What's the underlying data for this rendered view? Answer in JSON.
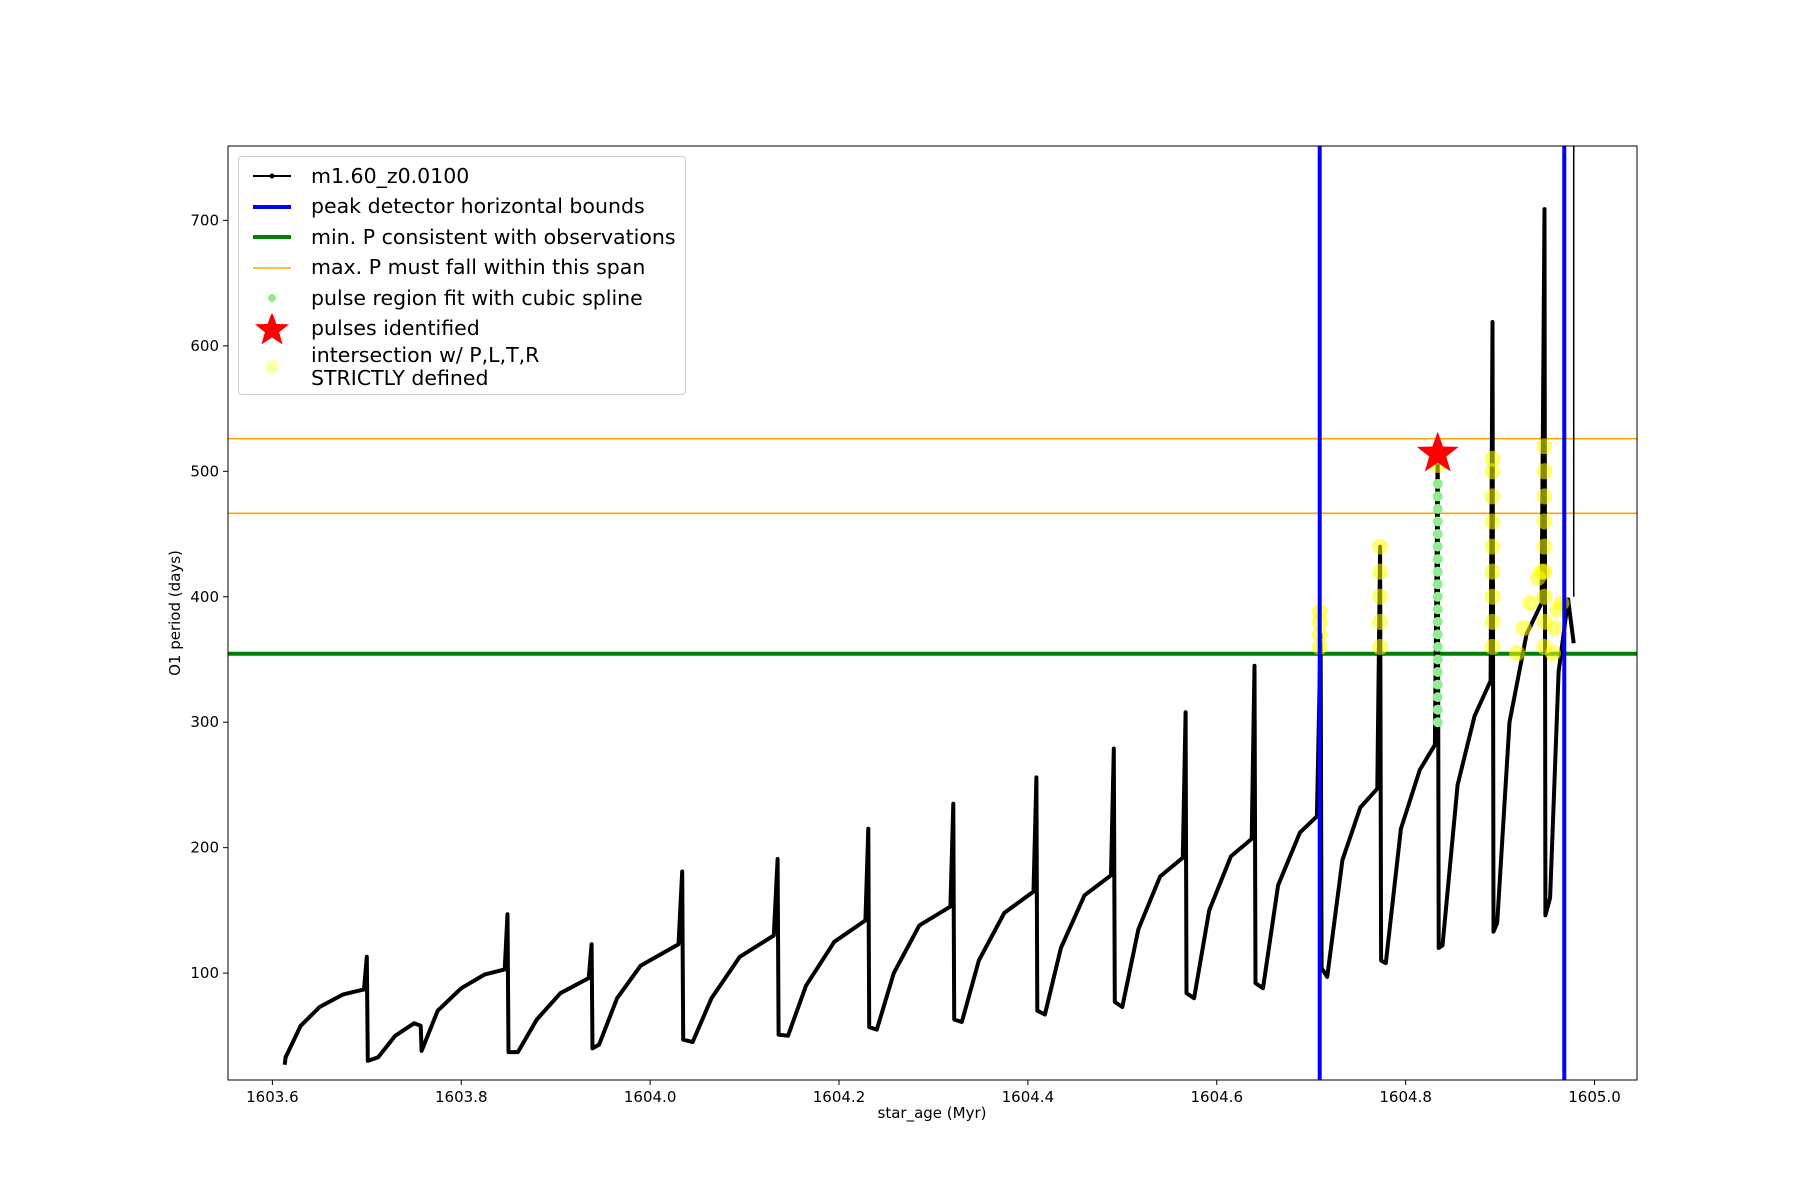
{
  "chart_data": {
    "type": "line",
    "xlabel": "star_age (Myr)",
    "ylabel": "O1 period (days)",
    "xlim": [
      1603.553,
      1605.045
    ],
    "ylim": [
      14.8,
      759.3
    ],
    "xticks": [
      1603.6,
      1603.8,
      {
        "value": 1604.0,
        "label": "1604.0"
      },
      1604.2,
      1604.4,
      1604.6,
      1604.8,
      {
        "value": 1605.0,
        "label": "1605.0"
      }
    ],
    "yticks": [
      100,
      200,
      300,
      400,
      500,
      600,
      700
    ],
    "legend": "upper left",
    "series": [
      {
        "name": "m1.60_z0.0100",
        "color": "#000000",
        "kind": "line",
        "x": [
          1603.613,
          1603.614,
          1603.63,
          1603.65,
          1603.675,
          1603.697,
          1603.7,
          1603.701,
          1603.712,
          1603.73,
          1603.75,
          1603.757,
          1603.758,
          1603.775,
          1603.8,
          1603.825,
          1603.846,
          1603.849,
          1603.85,
          1603.86,
          1603.88,
          1603.905,
          1603.935,
          1603.938,
          1603.939,
          1603.946,
          1603.965,
          1603.99,
          1604.03,
          1604.034,
          1604.035,
          1604.045,
          1604.065,
          1604.095,
          1604.131,
          1604.135,
          1604.136,
          1604.146,
          1604.165,
          1604.195,
          1604.228,
          1604.231,
          1604.232,
          1604.24,
          1604.258,
          1604.285,
          1604.318,
          1604.321,
          1604.322,
          1604.33,
          1604.348,
          1604.375,
          1604.406,
          1604.409,
          1604.41,
          1604.418,
          1604.435,
          1604.46,
          1604.488,
          1604.491,
          1604.492,
          1604.5,
          1604.517,
          1604.54,
          1604.564,
          1604.567,
          1604.568,
          1604.576,
          1604.592,
          1604.615,
          1604.637,
          1604.64,
          1604.641,
          1604.649,
          1604.665,
          1604.688,
          1604.706,
          1604.71,
          1604.711,
          1604.717,
          1604.733,
          1604.752,
          1604.77,
          1604.773,
          1604.774,
          1604.779,
          1604.795,
          1604.815,
          1604.831,
          1604.834,
          1604.835,
          1604.839,
          1604.855,
          1604.873,
          1604.89,
          1604.892,
          1604.893,
          1604.897,
          1604.91,
          1604.928,
          1604.944,
          1604.947,
          1604.948,
          1604.953,
          1604.962,
          1604.972,
          1604.978
        ],
        "values": [
          27,
          33,
          58,
          73,
          83,
          87,
          113,
          30,
          33,
          50,
          60,
          58,
          38,
          70,
          88,
          99,
          103,
          147,
          37,
          37,
          63,
          84,
          96,
          123,
          40,
          43,
          80,
          106,
          123,
          181,
          47,
          45,
          80,
          113,
          130,
          191,
          51,
          50,
          90,
          125,
          142,
          215,
          57,
          55,
          100,
          138,
          153,
          235,
          63,
          61,
          110,
          148,
          165,
          256,
          70,
          67,
          120,
          162,
          178,
          279,
          77,
          73,
          135,
          177,
          192,
          308,
          84,
          80,
          150,
          193,
          207,
          345,
          92,
          88,
          170,
          212,
          225,
          370,
          104,
          97,
          190,
          232,
          247,
          440,
          110,
          108,
          215,
          262,
          282,
          520,
          120,
          122,
          250,
          305,
          333,
          619,
          133,
          140,
          300,
          370,
          395,
          709,
          146,
          160,
          340,
          398,
          363
        ]
      },
      {
        "name": "peak detector horizontal bounds",
        "color": "#0000ff",
        "kind": "vline",
        "x": [
          1604.709,
          1604.968
        ]
      },
      {
        "name": "min. P consistent with observations",
        "color": "#008000",
        "kind": "hline",
        "values": [
          354.6
        ]
      },
      {
        "name": "max. P must fall within this span",
        "color": "#ffa500",
        "kind": "hline",
        "values": [
          466.5,
          526
        ]
      },
      {
        "name": "pulse region fit with cubic spline",
        "color": "#90ee90",
        "kind": "scatter",
        "x": [
          1604.834,
          1604.834,
          1604.834,
          1604.834,
          1604.834,
          1604.834,
          1604.834,
          1604.834,
          1604.834,
          1604.834,
          1604.834,
          1604.834,
          1604.834,
          1604.834,
          1604.834,
          1604.834,
          1604.834,
          1604.834,
          1604.834,
          1604.834
        ],
        "values": [
          300,
          310,
          320,
          330,
          340,
          350,
          360,
          370,
          380,
          390,
          400,
          410,
          420,
          430,
          440,
          450,
          460,
          470,
          480,
          490
        ]
      },
      {
        "name": "pulses identified",
        "color": "#ff0000",
        "kind": "star",
        "x": [
          1604.834
        ],
        "values": [
          514
        ]
      },
      {
        "name": "intersection w/ P,L,T,R\nSTRICTLY defined",
        "color": "#ffff00",
        "kind": "scatter",
        "x": [
          1604.709,
          1604.709,
          1604.709,
          1604.709,
          1604.773,
          1604.773,
          1604.773,
          1604.773,
          1604.773,
          1604.834,
          1604.834,
          1604.892,
          1604.892,
          1604.892,
          1604.892,
          1604.892,
          1604.892,
          1604.892,
          1604.892,
          1604.892,
          1604.947,
          1604.947,
          1604.947,
          1604.947,
          1604.947,
          1604.947,
          1604.947,
          1604.947,
          1604.947,
          1604.918,
          1604.925,
          1604.932,
          1604.94,
          1604.944,
          1604.956,
          1604.958,
          1604.961,
          1604.965
        ],
        "values": [
          360,
          370,
          380,
          388,
          360,
          380,
          400,
          420,
          440,
          505,
          512,
          360,
          380,
          400,
          420,
          440,
          460,
          480,
          500,
          510,
          360,
          380,
          400,
          420,
          440,
          460,
          480,
          500,
          520,
          355,
          375,
          395,
          415,
          420,
          355,
          375,
          390,
          395
        ]
      }
    ],
    "vlines": [
      {
        "x": 1604.978,
        "color": "#000000"
      }
    ]
  }
}
